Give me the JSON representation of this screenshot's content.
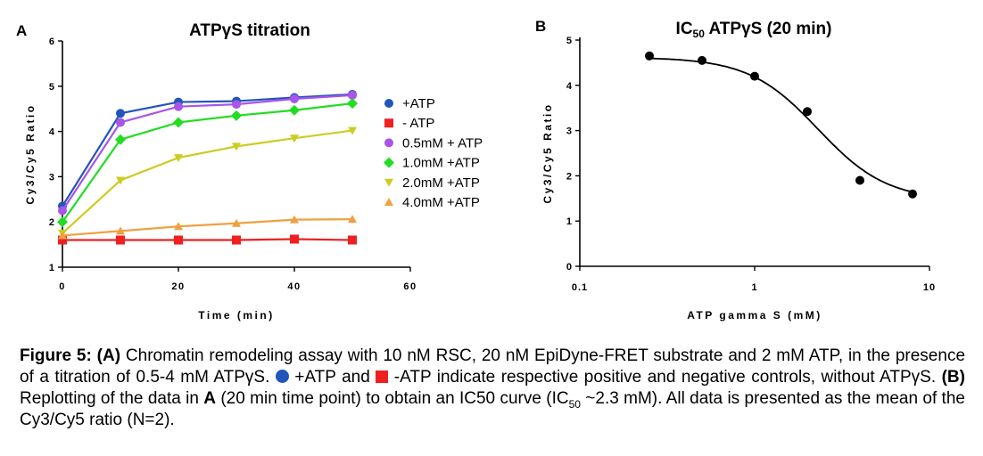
{
  "panel_a": {
    "letter": "A",
    "chart_data": {
      "type": "line",
      "title": "ATPγS titration",
      "xlabel": "Time (min)",
      "ylabel": "Cy3/Cy5 Ratio",
      "xlim": [
        0,
        60
      ],
      "ylim": [
        1,
        6
      ],
      "xticks": [
        0,
        20,
        40,
        60
      ],
      "yticks": [
        1,
        2,
        3,
        4,
        5,
        6
      ],
      "x": [
        0,
        10,
        20,
        30,
        40,
        50
      ],
      "legend_position": "right",
      "series": [
        {
          "name": "+ATP",
          "color": "#2255bb",
          "marker": "circle",
          "values": [
            2.35,
            4.4,
            4.65,
            4.67,
            4.75,
            4.82
          ]
        },
        {
          "name": "- ATP",
          "color": "#ee2020",
          "marker": "square",
          "values": [
            1.6,
            1.6,
            1.6,
            1.6,
            1.62,
            1.6
          ]
        },
        {
          "name": "0.5mM + ATP",
          "color": "#a855e8",
          "marker": "circle",
          "values": [
            2.25,
            4.2,
            4.55,
            4.6,
            4.72,
            4.8
          ]
        },
        {
          "name": "1.0mM +ATP",
          "color": "#22dd22",
          "marker": "diamond",
          "values": [
            2.0,
            3.82,
            4.2,
            4.35,
            4.47,
            4.62
          ]
        },
        {
          "name": "2.0mM +ATP",
          "color": "#cccc22",
          "marker": "triangle-down",
          "values": [
            1.75,
            2.92,
            3.42,
            3.67,
            3.85,
            4.02
          ]
        },
        {
          "name": "4.0mM +ATP",
          "color": "#f0a040",
          "marker": "triangle-up",
          "values": [
            1.7,
            1.8,
            1.9,
            1.97,
            2.05,
            2.06
          ]
        }
      ]
    }
  },
  "panel_b": {
    "letter": "B",
    "chart_data": {
      "type": "scatter",
      "title_main": "IC",
      "title_sub": "50",
      "title_rest": " ATPγS (20 min)",
      "xlabel": "ATP gamma S (mM)",
      "ylabel": "Cy3/Cy5 Ratio",
      "xscale": "log",
      "xlim": [
        0.1,
        10
      ],
      "ylim": [
        0,
        5
      ],
      "xticks": [
        0.1,
        1,
        10
      ],
      "xtick_labels": [
        "0.1",
        "1",
        "10"
      ],
      "yticks": [
        0,
        1,
        2,
        3,
        4,
        5
      ],
      "x": [
        0.25,
        0.5,
        1.0,
        2.0,
        4.0,
        8.0
      ],
      "values": [
        4.65,
        4.55,
        4.2,
        3.42,
        1.9,
        1.6
      ],
      "fit": {
        "model": "sigmoid",
        "top": 4.62,
        "bottom": 1.45,
        "ic50": 2.3,
        "hill": 2.2
      },
      "color": "#000000"
    }
  },
  "caption": {
    "label": "Figure 5:",
    "part_a": "(A)",
    "text1": " Chromatin remodeling assay with 10 nM RSC, 20 nM EpiDyne-FRET substrate and 2 mM ATP, in the presence of a titration of 0.5-4 mM ATPγS. ",
    "text2": " +ATP and ",
    "text3": " -ATP indicate respective positive and negative controls, without ATPγS. ",
    "part_b": "(B)",
    "text4": " Replotting of the data in ",
    "bold_a": "A",
    "text5": " (20 min time point) to obtain an IC50 curve (IC",
    "sub50": "50",
    "text6": " ~2.3 mM). All data is presented as the mean of the Cy3/Cy5 ratio (N=2).",
    "blue": "#2255bb",
    "red": "#ee2020"
  }
}
